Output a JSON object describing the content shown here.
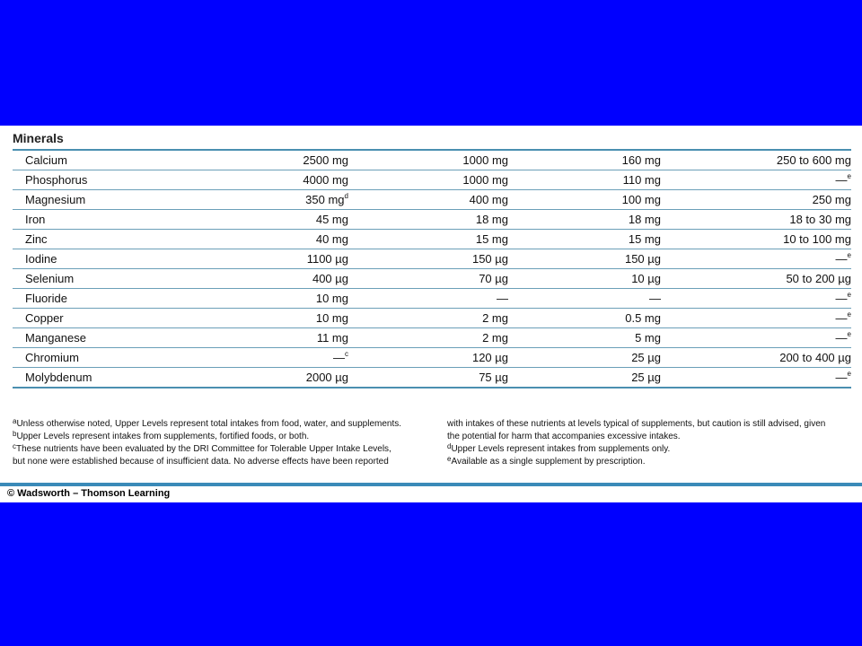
{
  "heading": "Minerals",
  "rows": [
    {
      "name": "Calcium",
      "c1": "2500 mg",
      "c1_sup": "",
      "c2": "1000 mg",
      "c3": "160 mg",
      "c4": "250 to 600 mg",
      "c4_sup": ""
    },
    {
      "name": "Phosphorus",
      "c1": "4000 mg",
      "c1_sup": "",
      "c2": "1000 mg",
      "c3": "110 mg",
      "c4": "—",
      "c4_sup": "e"
    },
    {
      "name": "Magnesium",
      "c1": "350 mg",
      "c1_sup": "d",
      "c2": "400 mg",
      "c3": "100 mg",
      "c4": "250 mg",
      "c4_sup": ""
    },
    {
      "name": "Iron",
      "c1": "45 mg",
      "c1_sup": "",
      "c2": "18 mg",
      "c3": "18 mg",
      "c4": "18 to 30 mg",
      "c4_sup": ""
    },
    {
      "name": "Zinc",
      "c1": "40 mg",
      "c1_sup": "",
      "c2": "15 mg",
      "c3": "15 mg",
      "c4": "10 to 100 mg",
      "c4_sup": ""
    },
    {
      "name": "Iodine",
      "c1": "1100 µg",
      "c1_sup": "",
      "c2": "150 µg",
      "c3": "150 µg",
      "c4": "—",
      "c4_sup": "e"
    },
    {
      "name": "Selenium",
      "c1": "400 µg",
      "c1_sup": "",
      "c2": "70 µg",
      "c3": "10 µg",
      "c4": "50 to 200 µg",
      "c4_sup": ""
    },
    {
      "name": "Fluoride",
      "c1": "10 mg",
      "c1_sup": "",
      "c2": "—",
      "c3": "—",
      "c4": "—",
      "c4_sup": "e"
    },
    {
      "name": "Copper",
      "c1": "10 mg",
      "c1_sup": "",
      "c2": "2 mg",
      "c3": "0.5 mg",
      "c4": "—",
      "c4_sup": "e"
    },
    {
      "name": "Manganese",
      "c1": "11 mg",
      "c1_sup": "",
      "c2": "2 mg",
      "c3": "5 mg",
      "c4": "—",
      "c4_sup": "e"
    },
    {
      "name": "Chromium",
      "c1": "—",
      "c1_sup": "c",
      "c2": "120 µg",
      "c3": "25 µg",
      "c4": "200 to 400 µg",
      "c4_sup": ""
    },
    {
      "name": "Molybdenum",
      "c1": "2000 µg",
      "c1_sup": "",
      "c2": "75 µg",
      "c3": "25 µg",
      "c4": "—",
      "c4_sup": "e"
    }
  ],
  "footnotes_left": [
    {
      "mark": "a",
      "text": "Unless otherwise noted, Upper Levels represent total intakes from food, water, and supplements."
    },
    {
      "mark": "b",
      "text": "Upper Levels represent intakes from supplements, fortified foods, or both."
    },
    {
      "mark": "c",
      "text": "These nutrients have been evaluated by the DRI Committee for Tolerable Upper Intake Levels,"
    },
    {
      "mark": "",
      "text": "but none were established because of insufficient data. No adverse effects have been reported"
    }
  ],
  "footnotes_right": [
    {
      "mark": "",
      "text": "with intakes of these nutrients at levels typical of supplements, but caution is still advised, given"
    },
    {
      "mark": "",
      "text": "the potential for harm that accompanies excessive intakes."
    },
    {
      "mark": "d",
      "text": "Upper Levels represent intakes from supplements only."
    },
    {
      "mark": "e",
      "text": "Available as a single supplement by prescription."
    }
  ],
  "copyright": "© Wadsworth – Thomson Learning"
}
